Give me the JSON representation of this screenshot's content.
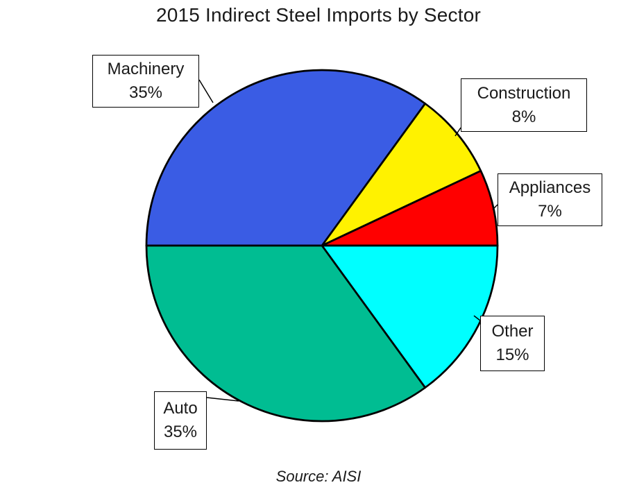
{
  "chart_data": {
    "type": "pie",
    "title": "2015 Indirect Steel Imports by Sector",
    "source": "Source: AISI",
    "unit": "percent",
    "start_angle_deg": 180,
    "direction": "clockwise",
    "legend_position": "none",
    "outline_color": "#000000",
    "background_color": "#ffffff",
    "slices": [
      {
        "label": "Machinery",
        "value": 35,
        "pct_label": "35%",
        "color": "#3a5ce4"
      },
      {
        "label": "Construction",
        "value": 8,
        "pct_label": "8%",
        "color": "#fff200"
      },
      {
        "label": "Appliances",
        "value": 7,
        "pct_label": "7%",
        "color": "#ff0000"
      },
      {
        "label": "Other",
        "value": 15,
        "pct_label": "15%",
        "color": "#00ffff"
      },
      {
        "label": "Auto",
        "value": 35,
        "pct_label": "35%",
        "color": "#00bd92"
      }
    ]
  }
}
